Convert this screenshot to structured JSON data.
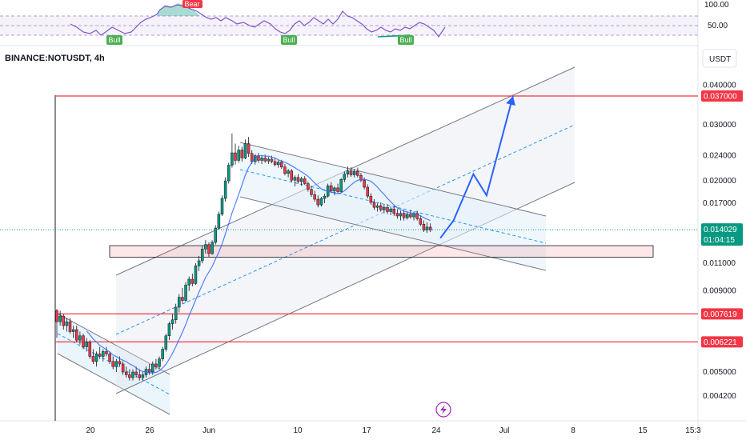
{
  "chart_data": {
    "type": "candlestick",
    "symbol_label": "BINANCE:NOTUSDT, 4h",
    "currency_label": "USDT",
    "y_scale": "log",
    "x_ticks": [
      {
        "label": "20"
      },
      {
        "label": "26"
      },
      {
        "label": "Jun"
      },
      {
        "label": "10"
      },
      {
        "label": "17"
      },
      {
        "label": "24"
      },
      {
        "label": "Jul"
      },
      {
        "label": "8"
      },
      {
        "label": "15"
      },
      {
        "label": "15:3"
      }
    ],
    "y_ticks": [
      {
        "value": 0.04,
        "label": "0.040000"
      },
      {
        "value": 0.03,
        "label": "0.030000"
      },
      {
        "value": 0.024,
        "label": "0.024000"
      },
      {
        "value": 0.02,
        "label": "0.020000"
      },
      {
        "value": 0.017,
        "label": "0.017000"
      },
      {
        "value": 0.011,
        "label": "0.011000"
      },
      {
        "value": 0.009,
        "label": "0.009000"
      },
      {
        "value": 0.005,
        "label": "0.005000"
      },
      {
        "value": 0.0042,
        "label": "0.004200"
      }
    ],
    "horizontal_levels": [
      {
        "value": 0.037,
        "label": "0.037000",
        "color": "#f23645"
      },
      {
        "value": 0.007619,
        "label": "0.007619",
        "color": "#f23645"
      },
      {
        "value": 0.006221,
        "label": "0.006221",
        "color": "#f23645"
      }
    ],
    "current_price": {
      "value": 0.014029,
      "label": "0.014029",
      "countdown": "01:04:15",
      "color": "#089981"
    },
    "support_zone": {
      "low": 0.0115,
      "high": 0.0125
    },
    "indicator": {
      "name": "RSI",
      "levels": [
        {
          "label": "100.00"
        },
        {
          "label": "50.00"
        }
      ],
      "signals": [
        {
          "label": "Bull",
          "type": "bull"
        },
        {
          "label": "Bear",
          "type": "bear"
        },
        {
          "label": "Bull",
          "type": "bull"
        },
        {
          "label": "Bull",
          "type": "bull"
        }
      ]
    },
    "candles": [
      [
        0.0078,
        0.0079,
        0.0064,
        0.0072
      ],
      [
        0.0072,
        0.0078,
        0.007,
        0.0075
      ],
      [
        0.0075,
        0.0076,
        0.0068,
        0.007
      ],
      [
        0.007,
        0.0074,
        0.0067,
        0.0072
      ],
      [
        0.0072,
        0.0074,
        0.0066,
        0.0067
      ],
      [
        0.0067,
        0.007,
        0.0064,
        0.0068
      ],
      [
        0.0068,
        0.007,
        0.0062,
        0.0063
      ],
      [
        0.0063,
        0.0067,
        0.0061,
        0.0065
      ],
      [
        0.0065,
        0.0066,
        0.0059,
        0.006
      ],
      [
        0.006,
        0.0064,
        0.0058,
        0.0062
      ],
      [
        0.0062,
        0.0063,
        0.0055,
        0.0056
      ],
      [
        0.0056,
        0.0059,
        0.0053,
        0.0054
      ],
      [
        0.0054,
        0.0058,
        0.0052,
        0.0057
      ],
      [
        0.0057,
        0.006,
        0.0055,
        0.0056
      ],
      [
        0.0056,
        0.0059,
        0.0054,
        0.0058
      ],
      [
        0.0058,
        0.006,
        0.0056,
        0.0057
      ],
      [
        0.0057,
        0.0058,
        0.0053,
        0.0054
      ],
      [
        0.0054,
        0.0056,
        0.0051,
        0.0052
      ],
      [
        0.0052,
        0.0055,
        0.005,
        0.0054
      ],
      [
        0.0054,
        0.0056,
        0.0052,
        0.0053
      ],
      [
        0.0053,
        0.0054,
        0.0049,
        0.005
      ],
      [
        0.005,
        0.0052,
        0.0048,
        0.0049
      ],
      [
        0.0049,
        0.0051,
        0.0047,
        0.0048
      ],
      [
        0.0048,
        0.0051,
        0.0047,
        0.005
      ],
      [
        0.005,
        0.0052,
        0.0048,
        0.0049
      ],
      [
        0.0049,
        0.0051,
        0.0047,
        0.0048
      ],
      [
        0.0048,
        0.005,
        0.0047,
        0.0049
      ],
      [
        0.0049,
        0.0052,
        0.0048,
        0.0051
      ],
      [
        0.0051,
        0.0053,
        0.0049,
        0.005
      ],
      [
        0.005,
        0.0054,
        0.0049,
        0.0053
      ],
      [
        0.0053,
        0.0055,
        0.0051,
        0.0052
      ],
      [
        0.0052,
        0.0056,
        0.0051,
        0.0055
      ],
      [
        0.0055,
        0.006,
        0.0054,
        0.0059
      ],
      [
        0.0059,
        0.0066,
        0.0058,
        0.0065
      ],
      [
        0.0065,
        0.0072,
        0.0063,
        0.0071
      ],
      [
        0.0071,
        0.0076,
        0.0068,
        0.0073
      ],
      [
        0.0073,
        0.0082,
        0.0071,
        0.008
      ],
      [
        0.008,
        0.0088,
        0.0077,
        0.0086
      ],
      [
        0.0086,
        0.0092,
        0.0082,
        0.0084
      ],
      [
        0.0084,
        0.0096,
        0.0083,
        0.0094
      ],
      [
        0.0094,
        0.01,
        0.009,
        0.0098
      ],
      [
        0.0098,
        0.0102,
        0.0093,
        0.0095
      ],
      [
        0.0095,
        0.011,
        0.0094,
        0.0108
      ],
      [
        0.0108,
        0.0116,
        0.0104,
        0.0112
      ],
      [
        0.0112,
        0.0125,
        0.011,
        0.0122
      ],
      [
        0.0122,
        0.013,
        0.0118,
        0.0126
      ],
      [
        0.0126,
        0.0128,
        0.0115,
        0.0118
      ],
      [
        0.0118,
        0.013,
        0.0117,
        0.0128
      ],
      [
        0.0128,
        0.0145,
        0.0126,
        0.0142
      ],
      [
        0.0142,
        0.016,
        0.014,
        0.0157
      ],
      [
        0.0157,
        0.018,
        0.0155,
        0.0176
      ],
      [
        0.0176,
        0.0205,
        0.0172,
        0.02
      ],
      [
        0.02,
        0.0228,
        0.0196,
        0.0224
      ],
      [
        0.0224,
        0.0282,
        0.022,
        0.0245
      ],
      [
        0.0245,
        0.0262,
        0.0225,
        0.0232
      ],
      [
        0.0232,
        0.0258,
        0.0228,
        0.025
      ],
      [
        0.025,
        0.0256,
        0.023,
        0.0236
      ],
      [
        0.0236,
        0.027,
        0.0234,
        0.0262
      ],
      [
        0.0262,
        0.0275,
        0.0238,
        0.0244
      ],
      [
        0.0244,
        0.025,
        0.0226,
        0.023
      ],
      [
        0.023,
        0.0243,
        0.0225,
        0.024
      ],
      [
        0.024,
        0.0245,
        0.0228,
        0.0232
      ],
      [
        0.0232,
        0.024,
        0.0226,
        0.0236
      ],
      [
        0.0236,
        0.0242,
        0.0228,
        0.0231
      ],
      [
        0.0231,
        0.0238,
        0.0226,
        0.0234
      ],
      [
        0.0234,
        0.024,
        0.0227,
        0.023
      ],
      [
        0.023,
        0.0236,
        0.0222,
        0.0225
      ],
      [
        0.0225,
        0.0232,
        0.022,
        0.0229
      ],
      [
        0.0229,
        0.0233,
        0.0218,
        0.0221
      ],
      [
        0.0221,
        0.0226,
        0.0208,
        0.0211
      ],
      [
        0.0211,
        0.0218,
        0.0205,
        0.0215
      ],
      [
        0.0215,
        0.0218,
        0.0198,
        0.0201
      ],
      [
        0.0201,
        0.0208,
        0.0192,
        0.0205
      ],
      [
        0.0205,
        0.021,
        0.0196,
        0.0199
      ],
      [
        0.0199,
        0.0206,
        0.0193,
        0.0203
      ],
      [
        0.0203,
        0.0207,
        0.0194,
        0.0196
      ],
      [
        0.0196,
        0.0199,
        0.0185,
        0.0188
      ],
      [
        0.0188,
        0.0193,
        0.0178,
        0.0181
      ],
      [
        0.0181,
        0.0186,
        0.0172,
        0.0175
      ],
      [
        0.0175,
        0.018,
        0.0165,
        0.0168
      ],
      [
        0.0168,
        0.0178,
        0.0166,
        0.0176
      ],
      [
        0.0176,
        0.0182,
        0.017,
        0.0179
      ],
      [
        0.0179,
        0.0196,
        0.0177,
        0.0193
      ],
      [
        0.0193,
        0.0198,
        0.0183,
        0.0186
      ],
      [
        0.0186,
        0.0192,
        0.018,
        0.019
      ],
      [
        0.019,
        0.0196,
        0.0183,
        0.0185
      ],
      [
        0.0185,
        0.0204,
        0.0184,
        0.0202
      ],
      [
        0.0202,
        0.0214,
        0.0198,
        0.021
      ],
      [
        0.021,
        0.0222,
        0.0205,
        0.0215
      ],
      [
        0.0215,
        0.0221,
        0.0206,
        0.0209
      ],
      [
        0.0209,
        0.0218,
        0.0205,
        0.0214
      ],
      [
        0.0214,
        0.022,
        0.0205,
        0.0208
      ],
      [
        0.0208,
        0.0212,
        0.0198,
        0.0201
      ],
      [
        0.0201,
        0.0205,
        0.0188,
        0.0191
      ],
      [
        0.0191,
        0.0195,
        0.0176,
        0.0179
      ],
      [
        0.0179,
        0.0183,
        0.0168,
        0.0171
      ],
      [
        0.0171,
        0.0175,
        0.0162,
        0.0165
      ],
      [
        0.0165,
        0.017,
        0.016,
        0.0167
      ],
      [
        0.0167,
        0.0171,
        0.016,
        0.0162
      ],
      [
        0.0162,
        0.0168,
        0.0158,
        0.0165
      ],
      [
        0.0165,
        0.0169,
        0.0157,
        0.016
      ],
      [
        0.016,
        0.0166,
        0.0156,
        0.0163
      ],
      [
        0.0163,
        0.0167,
        0.0155,
        0.0158
      ],
      [
        0.0158,
        0.0163,
        0.0152,
        0.0155
      ],
      [
        0.0155,
        0.0161,
        0.015,
        0.0158
      ],
      [
        0.0158,
        0.0162,
        0.015,
        0.0153
      ],
      [
        0.0153,
        0.016,
        0.0151,
        0.0157
      ],
      [
        0.0157,
        0.0162,
        0.0152,
        0.0154
      ],
      [
        0.0154,
        0.016,
        0.015,
        0.0158
      ],
      [
        0.0158,
        0.0161,
        0.015,
        0.0152
      ],
      [
        0.0152,
        0.0155,
        0.0144,
        0.0146
      ],
      [
        0.0146,
        0.015,
        0.0138,
        0.014
      ],
      [
        0.014,
        0.0148,
        0.0137,
        0.0143
      ],
      [
        0.0143,
        0.0147,
        0.0138,
        0.014
      ]
    ],
    "drawings": {
      "price_path_points": [
        {
          "i": 116,
          "v": 0.0132
        },
        {
          "i": 120,
          "v": 0.015
        },
        {
          "i": 126,
          "v": 0.021
        },
        {
          "i": 130,
          "v": 0.018
        },
        {
          "i": 138,
          "v": 0.037
        }
      ]
    }
  }
}
